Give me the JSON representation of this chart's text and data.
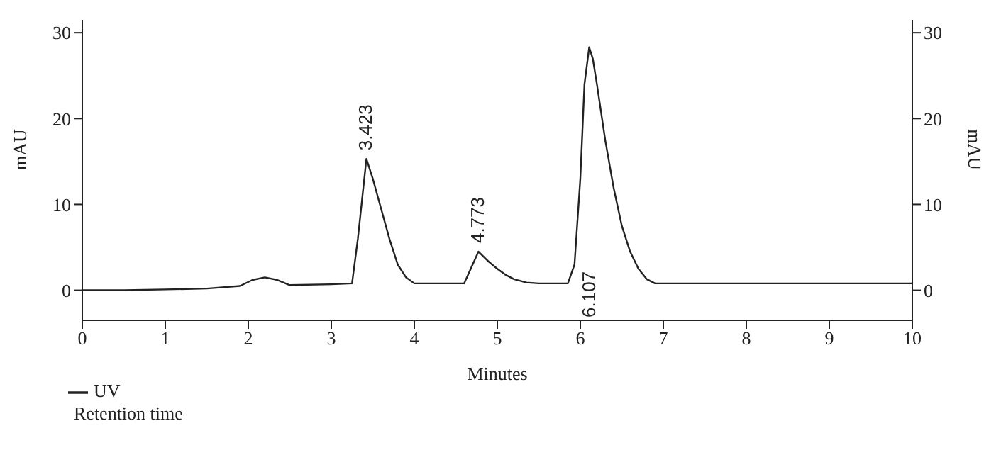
{
  "chart_data": {
    "type": "line",
    "xlabel": "Minutes",
    "ylabel": "mAU",
    "y2label": "mAU",
    "x": [
      0,
      0.5,
      1,
      1.5,
      1.9,
      2.05,
      2.2,
      2.35,
      2.5,
      3.0,
      3.25,
      3.32,
      3.423,
      3.5,
      3.6,
      3.7,
      3.8,
      3.9,
      4.0,
      4.3,
      4.6,
      4.68,
      4.773,
      4.9,
      5.0,
      5.1,
      5.2,
      5.35,
      5.5,
      5.85,
      5.93,
      6.0,
      6.05,
      6.107,
      6.15,
      6.2,
      6.3,
      6.4,
      6.5,
      6.6,
      6.7,
      6.8,
      6.9,
      7.5,
      8.5,
      10
    ],
    "series": [
      {
        "name": "UV",
        "color": "#222222",
        "values": [
          0,
          0,
          0.1,
          0.2,
          0.5,
          1.2,
          1.5,
          1.2,
          0.6,
          0.7,
          0.8,
          6,
          15.3,
          13,
          9.5,
          6,
          3,
          1.5,
          0.8,
          0.8,
          0.8,
          2.5,
          4.5,
          3.3,
          2.5,
          1.8,
          1.3,
          0.9,
          0.8,
          0.8,
          3,
          13,
          24,
          28.3,
          27,
          24,
          17.5,
          12,
          7.5,
          4.5,
          2.5,
          1.3,
          0.8,
          0.8,
          0.8,
          0.8
        ]
      }
    ],
    "xlim": [
      0,
      10
    ],
    "xticks": [
      0,
      1,
      2,
      3,
      4,
      5,
      6,
      7,
      8,
      9,
      10
    ],
    "ylim": [
      -3.5,
      31.5
    ],
    "yticks": [
      0,
      10,
      20,
      30
    ],
    "y2lim": [
      -3.5,
      31.5
    ],
    "y2ticks": [
      0,
      10,
      20,
      30
    ],
    "annotations": [
      {
        "text": "3.423",
        "x": 3.423,
        "y": 15.3
      },
      {
        "text": "4.773",
        "x": 4.773,
        "y": 4.5
      },
      "6.107",
      "Retention time"
    ],
    "grid": false,
    "legend": "bottom left",
    "marker": "none",
    "line_style": "solid"
  }
}
